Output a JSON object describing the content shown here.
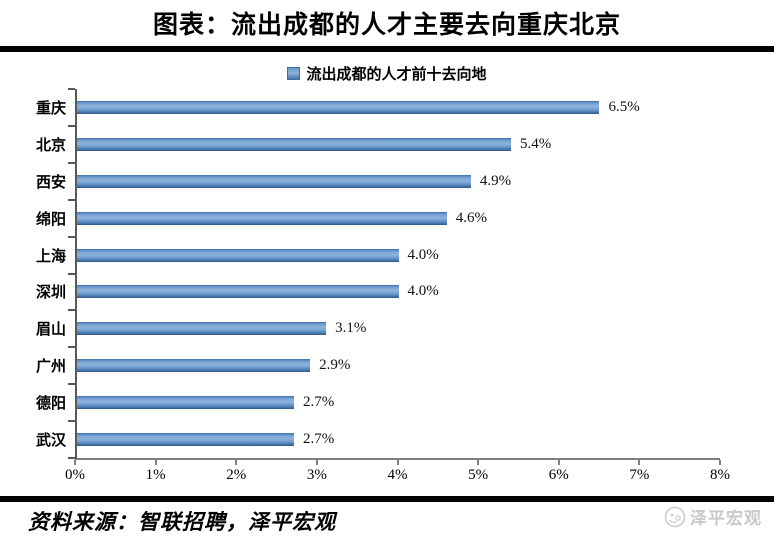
{
  "header": {
    "title": "图表：流出成都的人才主要去向重庆北京"
  },
  "legend": {
    "label": "流出成都的人才前十去向地",
    "marker_color": "#4F81BD"
  },
  "chart_data": {
    "type": "bar",
    "orientation": "horizontal",
    "title": "流出成都的人才前十去向地",
    "categories": [
      "重庆",
      "北京",
      "西安",
      "绵阳",
      "上海",
      "深圳",
      "眉山",
      "广州",
      "德阳",
      "武汉"
    ],
    "values": [
      6.5,
      5.4,
      4.9,
      4.6,
      4.0,
      4.0,
      3.1,
      2.9,
      2.7,
      2.7
    ],
    "value_labels": [
      "6.5%",
      "5.4%",
      "4.9%",
      "4.6%",
      "4.0%",
      "4.0%",
      "3.1%",
      "2.9%",
      "2.7%",
      "2.7%"
    ],
    "xlabel": "",
    "ylabel": "",
    "xlim": [
      0,
      8
    ],
    "x_tick_labels": [
      "0%",
      "1%",
      "2%",
      "3%",
      "4%",
      "5%",
      "6%",
      "7%",
      "8%"
    ],
    "grid": false,
    "legend_position": "top-center",
    "bar_color": "#4F81BD",
    "axis_color": "#7f7f7f"
  },
  "footer": {
    "source": "资料来源：智联招聘，泽平宏观",
    "watermark": "泽平宏观"
  }
}
